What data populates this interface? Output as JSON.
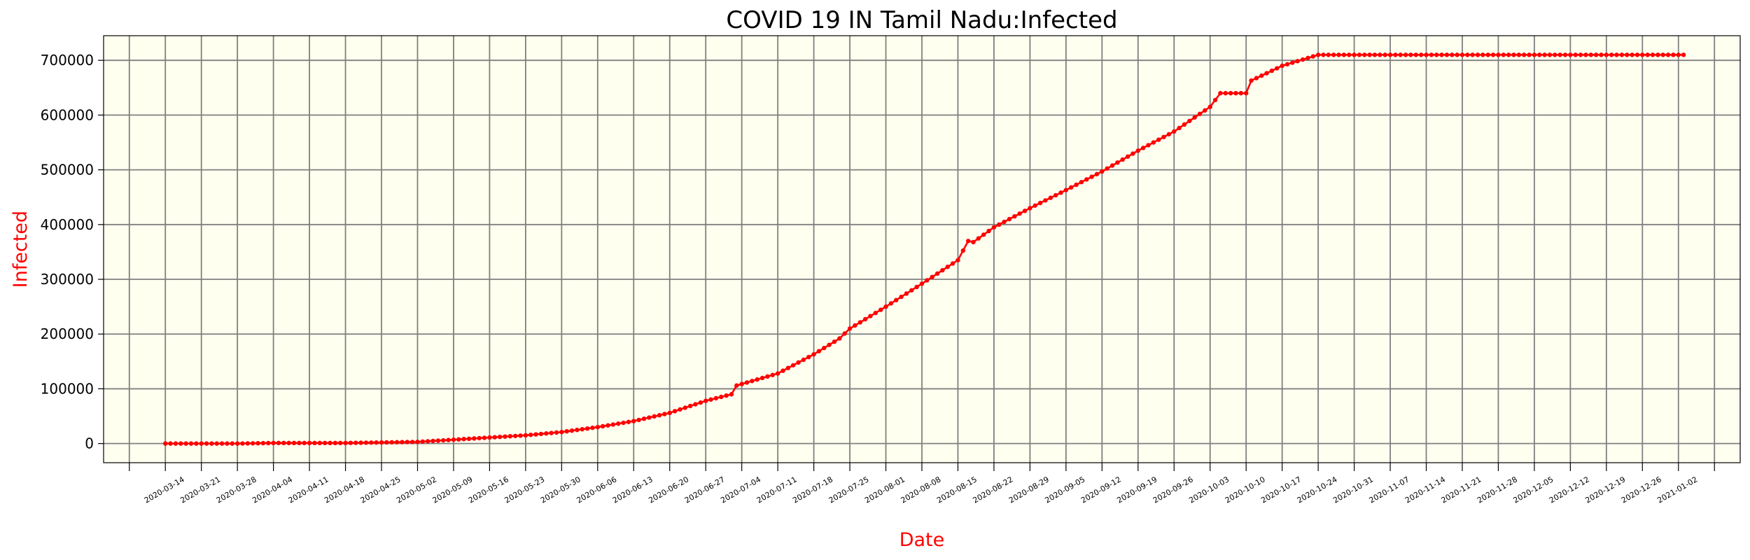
{
  "chart_data": {
    "type": "line",
    "title": "COVID 19 IN Tamil Nadu:Infected",
    "xlabel": "Date",
    "ylabel": "Infected",
    "x_range": [
      "2020-03-02",
      "2021-01-14"
    ],
    "ylim": [
      -35000,
      745000
    ],
    "yticks": [
      0,
      100000,
      200000,
      300000,
      400000,
      500000,
      600000,
      700000
    ],
    "ytick_labels": [
      "0",
      "100000",
      "200000",
      "300000",
      "400000",
      "500000",
      "600000",
      "700000"
    ],
    "xtick_labels": [
      "2020-03-14",
      "2020-03-21",
      "2020-03-28",
      "2020-04-04",
      "2020-04-11",
      "2020-04-18",
      "2020-04-25",
      "2020-05-02",
      "2020-05-09",
      "2020-05-16",
      "2020-05-23",
      "2020-05-30",
      "2020-06-06",
      "2020-06-13",
      "2020-06-20",
      "2020-06-27",
      "2020-07-04",
      "2020-07-11",
      "2020-07-18",
      "2020-07-25",
      "2020-08-01",
      "2020-08-08",
      "2020-08-15",
      "2020-08-22",
      "2020-08-29",
      "2020-09-05",
      "2020-09-12",
      "2020-09-19",
      "2020-09-26",
      "2020-10-03",
      "2020-10-10",
      "2020-10-17",
      "2020-10-24",
      "2020-10-31",
      "2020-11-07",
      "2020-11-14",
      "2020-11-21",
      "2020-11-28",
      "2020-12-05",
      "2020-12-12",
      "2020-12-19",
      "2020-12-26",
      "2021-01-02"
    ],
    "grid": true,
    "background": "#fffff0",
    "series": [
      {
        "color": "#ff0000",
        "marker": "dot",
        "x": [
          "2020-03-14",
          "2020-03-21",
          "2020-03-28",
          "2020-04-04",
          "2020-04-11",
          "2020-04-18",
          "2020-04-25",
          "2020-05-02",
          "2020-05-09",
          "2020-05-16",
          "2020-05-23",
          "2020-05-30",
          "2020-06-06",
          "2020-06-13",
          "2020-06-20",
          "2020-06-27",
          "2020-07-02",
          "2020-07-03",
          "2020-07-11",
          "2020-07-18",
          "2020-07-22",
          "2020-07-23",
          "2020-07-25",
          "2020-08-01",
          "2020-08-06",
          "2020-08-08",
          "2020-08-15",
          "2020-08-17",
          "2020-08-18",
          "2020-08-22",
          "2020-08-29",
          "2020-09-05",
          "2020-09-12",
          "2020-09-19",
          "2020-09-26",
          "2020-10-03",
          "2020-10-05",
          "2020-10-10",
          "2020-10-11",
          "2020-10-17",
          "2020-10-24",
          "2020-10-26",
          "2020-10-31",
          "2020-11-07",
          "2020-11-14",
          "2020-11-21",
          "2020-11-28",
          "2020-12-05",
          "2020-12-12",
          "2020-12-19",
          "2020-12-26",
          "2021-01-02",
          "2021-01-03"
        ],
        "y": [
          0,
          0,
          0,
          1000,
          1000,
          1000,
          2000,
          3000,
          7000,
          11000,
          15000,
          21000,
          30000,
          41000,
          56000,
          78000,
          90000,
          106000,
          128000,
          163000,
          186000,
          192000,
          210000,
          250000,
          280000,
          292000,
          335000,
          370000,
          368000,
          395000,
          430000,
          463000,
          497000,
          535000,
          570000,
          615000,
          640000,
          640000,
          663000,
          690000,
          710000,
          710000,
          710000,
          710000,
          710000,
          710000,
          710000,
          710000,
          710000,
          710000,
          710000,
          710000,
          710000
        ]
      }
    ]
  }
}
